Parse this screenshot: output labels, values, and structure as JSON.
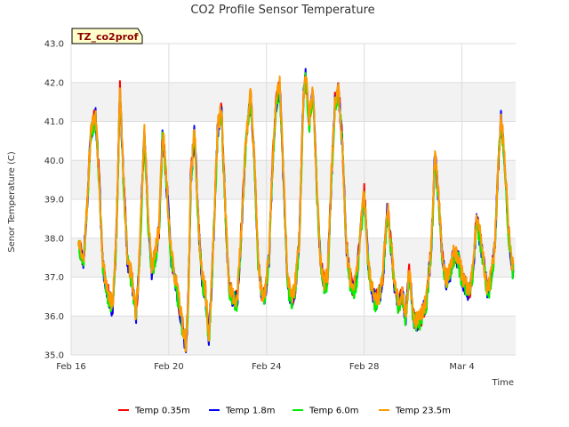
{
  "chart_data": {
    "type": "line",
    "title": "CO2 Profile Sensor Temperature",
    "xlabel": "Time",
    "ylabel": "Senor Temperature (C)",
    "tag": "TZ_co2prof",
    "ylim": [
      35.0,
      43.0
    ],
    "xlim": [
      16,
      34.2
    ],
    "y_ticks": [
      "35.0",
      "36.0",
      "37.0",
      "38.0",
      "39.0",
      "40.0",
      "41.0",
      "42.0",
      "43.0"
    ],
    "x_ticks": [
      {
        "label": "Feb 16",
        "day": 16
      },
      {
        "label": "Feb 20",
        "day": 20
      },
      {
        "label": "Feb 24",
        "day": 24
      },
      {
        "label": "Feb 28",
        "day": 28
      },
      {
        "label": "Mar 4",
        "day": 32
      }
    ],
    "base_profile": [
      [
        16.3,
        38.0
      ],
      [
        16.5,
        37.4
      ],
      [
        16.65,
        38.8
      ],
      [
        16.8,
        40.7
      ],
      [
        17.0,
        41.2
      ],
      [
        17.15,
        39.5
      ],
      [
        17.3,
        37.3
      ],
      [
        17.5,
        36.6
      ],
      [
        17.7,
        36.2
      ],
      [
        17.85,
        38.0
      ],
      [
        18.0,
        41.8
      ],
      [
        18.15,
        39.5
      ],
      [
        18.3,
        37.5
      ],
      [
        18.5,
        36.9
      ],
      [
        18.65,
        36.0
      ],
      [
        18.8,
        37.5
      ],
      [
        19.0,
        40.8
      ],
      [
        19.15,
        38.5
      ],
      [
        19.3,
        37.2
      ],
      [
        19.45,
        37.6
      ],
      [
        19.6,
        38.2
      ],
      [
        19.75,
        40.8
      ],
      [
        19.9,
        39.5
      ],
      [
        20.1,
        37.5
      ],
      [
        20.3,
        36.8
      ],
      [
        20.45,
        36.2
      ],
      [
        20.6,
        35.6
      ],
      [
        20.7,
        35.2
      ],
      [
        20.8,
        36.5
      ],
      [
        20.9,
        39.5
      ],
      [
        21.05,
        40.8
      ],
      [
        21.2,
        38.5
      ],
      [
        21.35,
        37.0
      ],
      [
        21.5,
        36.6
      ],
      [
        21.65,
        35.4
      ],
      [
        21.8,
        37.5
      ],
      [
        22.0,
        40.8
      ],
      [
        22.15,
        41.3
      ],
      [
        22.3,
        39.0
      ],
      [
        22.45,
        36.8
      ],
      [
        22.6,
        36.5
      ],
      [
        22.8,
        36.4
      ],
      [
        22.95,
        38.0
      ],
      [
        23.15,
        40.5
      ],
      [
        23.35,
        41.7
      ],
      [
        23.5,
        40.0
      ],
      [
        23.65,
        37.5
      ],
      [
        23.8,
        36.5
      ],
      [
        23.95,
        36.6
      ],
      [
        24.1,
        37.5
      ],
      [
        24.25,
        40.0
      ],
      [
        24.4,
        41.5
      ],
      [
        24.55,
        41.9
      ],
      [
        24.7,
        39.5
      ],
      [
        24.85,
        37.0
      ],
      [
        25.0,
        36.4
      ],
      [
        25.15,
        36.6
      ],
      [
        25.35,
        38.0
      ],
      [
        25.5,
        41.5
      ],
      [
        25.6,
        42.2
      ],
      [
        25.75,
        41.0
      ],
      [
        25.9,
        41.7
      ],
      [
        26.05,
        39.5
      ],
      [
        26.2,
        37.5
      ],
      [
        26.35,
        36.8
      ],
      [
        26.5,
        37.0
      ],
      [
        26.65,
        39.5
      ],
      [
        26.8,
        41.5
      ],
      [
        26.95,
        41.8
      ],
      [
        27.1,
        40.5
      ],
      [
        27.25,
        38.0
      ],
      [
        27.4,
        37.0
      ],
      [
        27.55,
        36.7
      ],
      [
        27.7,
        37.0
      ],
      [
        27.85,
        38.2
      ],
      [
        28.0,
        39.2
      ],
      [
        28.15,
        37.5
      ],
      [
        28.3,
        36.7
      ],
      [
        28.45,
        36.4
      ],
      [
        28.6,
        36.5
      ],
      [
        28.75,
        36.9
      ],
      [
        28.95,
        38.8
      ],
      [
        29.1,
        37.8
      ],
      [
        29.25,
        36.7
      ],
      [
        29.4,
        36.3
      ],
      [
        29.55,
        36.6
      ],
      [
        29.7,
        36.0
      ],
      [
        29.85,
        37.2
      ],
      [
        30.0,
        36.0
      ],
      [
        30.2,
        35.8
      ],
      [
        30.35,
        36.0
      ],
      [
        30.55,
        36.4
      ],
      [
        30.75,
        37.8
      ],
      [
        30.9,
        40.2
      ],
      [
        31.05,
        39.0
      ],
      [
        31.2,
        37.5
      ],
      [
        31.35,
        36.9
      ],
      [
        31.5,
        37.1
      ],
      [
        31.65,
        37.6
      ],
      [
        31.85,
        37.5
      ],
      [
        32.0,
        37.0
      ],
      [
        32.15,
        36.8
      ],
      [
        32.3,
        36.6
      ],
      [
        32.45,
        37.2
      ],
      [
        32.6,
        38.5
      ],
      [
        32.75,
        38.0
      ],
      [
        32.9,
        37.3
      ],
      [
        33.05,
        36.6
      ],
      [
        33.2,
        37.0
      ],
      [
        33.35,
        37.8
      ],
      [
        33.5,
        40.0
      ],
      [
        33.6,
        41.1
      ],
      [
        33.75,
        40.0
      ],
      [
        33.9,
        38.2
      ],
      [
        34.05,
        37.3
      ],
      [
        34.1,
        37.2
      ]
    ],
    "series": [
      {
        "name": "Temp 0.35m",
        "color": "#ff0000",
        "offset": 0.0,
        "seed": 11
      },
      {
        "name": "Temp 1.8m",
        "color": "#0000ff",
        "offset": -0.03,
        "seed": 23
      },
      {
        "name": "Temp 6.0m",
        "color": "#00ee00",
        "offset": -0.08,
        "seed": 37
      },
      {
        "name": "Temp 23.5m",
        "color": "#ff9900",
        "offset": 0.05,
        "seed": 53
      }
    ]
  }
}
